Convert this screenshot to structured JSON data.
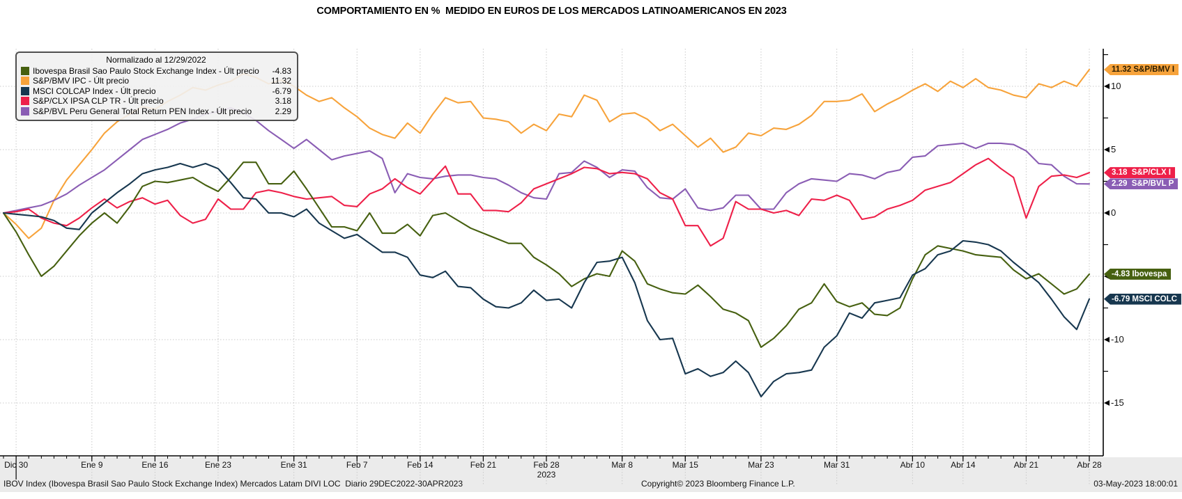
{
  "title": "COMPORTAMIENTO EN %  MEDIDO EN EUROS DE LOS MERCADOS LATINOAMERICANOS EN 2023",
  "legend": {
    "title": "Normalizado al 12/29/2022",
    "rows": [
      {
        "label": "Ibovespa Brasil Sao Paulo Stock Exchange Index - Últ precio",
        "value": "-4.83",
        "color": "#466010"
      },
      {
        "label": "S&P/BMV IPC - Últ precio",
        "value": "11.32",
        "color": "#f7a33b"
      },
      {
        "label": "MSCI COLCAP Index - Últ precio",
        "value": "-6.79",
        "color": "#17374f"
      },
      {
        "label": "S&P/CLX IPSA CLP TR - Últ precio",
        "value": "3.18",
        "color": "#ee2049"
      },
      {
        "label": "S&P/BVL Peru General Total Return PEN Index - Últ precio",
        "value": "2.29",
        "color": "#8a5db4"
      }
    ]
  },
  "axis_tags": [
    {
      "text": "11.32 S&P/BMV I",
      "value": 11.32,
      "bg": "#f7a33b",
      "fg": "#2b1d00",
      "border": "#7a5a10"
    },
    {
      "text": "3.18  S&P/CLX I",
      "value": 3.18,
      "bg": "#ee2049",
      "fg": "#ffffff",
      "border": "#7e0a22"
    },
    {
      "text": "2.29  S&P/BVL P",
      "value": 2.29,
      "bg": "#8a5db4",
      "fg": "#ffffff",
      "border": "#462860"
    },
    {
      "text": "-4.83 Ibovespa",
      "value": -4.83,
      "bg": "#466010",
      "fg": "#ffffff",
      "border": "#1f2e04"
    },
    {
      "text": "-6.79 MSCI COLC",
      "value": -6.79,
      "bg": "#17374f",
      "fg": "#ffffff",
      "border": "#081724"
    }
  ],
  "footer": {
    "left": "IBOV Index (Ibovespa Brasil Sao Paulo Stock Exchange Index) Mercados Latam DIVI LOC  Diario 29DEC2022-30APR2023",
    "center": "Copyright© 2023 Bloomberg Finance L.P.",
    "right": "03-May-2023 18:00:01"
  },
  "chart_data": {
    "type": "line",
    "title": "COMPORTAMIENTO EN %  MEDIDO EN EUROS DE LOS MERCADOS LATINOAMERICANOS EN 2023",
    "normalized_note": "Normalizado al 12/29/2022",
    "x_unit": "business-day index from 29-Dec-2022 (0) to 28-Apr-2023 (86)",
    "ylabel": "% change in EUR",
    "ylim": [
      -16.5,
      13
    ],
    "y_ticks": [
      10,
      5,
      0,
      -5,
      -10,
      -15
    ],
    "y_minor_step": 2.5,
    "grid": "dotted",
    "legend_position": "top-left",
    "year_label": "2023",
    "x_tick_labels": [
      {
        "label": "Dic 30",
        "day": 1,
        "year_start": true
      },
      {
        "label": "Ene 9",
        "day": 7
      },
      {
        "label": "Ene 16",
        "day": 12
      },
      {
        "label": "Ene 23",
        "day": 17
      },
      {
        "label": "Ene 31",
        "day": 23
      },
      {
        "label": "Feb 7",
        "day": 28
      },
      {
        "label": "Feb 14",
        "day": 33
      },
      {
        "label": "Feb 21",
        "day": 38
      },
      {
        "label": "Feb 28",
        "day": 43
      },
      {
        "label": "Mar 8",
        "day": 49
      },
      {
        "label": "Mar 15",
        "day": 54
      },
      {
        "label": "Mar 23",
        "day": 60
      },
      {
        "label": "Mar 31",
        "day": 66
      },
      {
        "label": "Abr 10",
        "day": 72
      },
      {
        "label": "Abr 14",
        "day": 76
      },
      {
        "label": "Abr 21",
        "day": 81
      },
      {
        "label": "Abr 28",
        "day": 86
      }
    ],
    "series": [
      {
        "name": "S&P/BMV IPC",
        "color": "#f7a33b",
        "last_value": 11.32,
        "values": [
          0,
          -0.9,
          -2.0,
          -1.2,
          1.0,
          2.6,
          3.8,
          5.0,
          6.3,
          7.2,
          7.8,
          8.4,
          8.2,
          8.8,
          9.3,
          9.9,
          9.7,
          10.1,
          10.4,
          11.0,
          10.7,
          10.2,
          10.5,
          10.0,
          9.3,
          8.8,
          9.1,
          8.3,
          7.6,
          6.7,
          6.2,
          5.9,
          7.1,
          6.3,
          7.8,
          9.1,
          8.7,
          8.8,
          7.5,
          7.4,
          7.2,
          6.3,
          7.0,
          6.5,
          7.8,
          7.6,
          9.3,
          8.9,
          7.2,
          7.8,
          7.9,
          7.4,
          6.5,
          7.0,
          6.1,
          5.2,
          5.9,
          4.8,
          5.2,
          6.3,
          6.1,
          6.7,
          6.6,
          7.0,
          7.7,
          8.8,
          8.8,
          8.9,
          9.4,
          8.0,
          8.6,
          9.1,
          9.7,
          10.2,
          9.6,
          10.4,
          9.9,
          10.6,
          9.9,
          9.7,
          9.3,
          9.1,
          10.2,
          9.9,
          10.4,
          10.0,
          11.32
        ]
      },
      {
        "name": "S&P/BVL Peru General Total Return PEN Index",
        "color": "#8a5db4",
        "last_value": 2.29,
        "values": [
          0,
          0.2,
          0.4,
          0.6,
          1.0,
          1.5,
          2.2,
          2.8,
          3.4,
          4.2,
          5.0,
          5.8,
          6.2,
          6.6,
          7.1,
          7.4,
          7.8,
          8.0,
          8.3,
          7.9,
          7.3,
          6.5,
          5.8,
          5.1,
          5.8,
          5.0,
          4.2,
          4.5,
          4.7,
          4.9,
          4.3,
          1.6,
          3.1,
          2.8,
          2.7,
          2.9,
          3.0,
          3.0,
          2.8,
          2.7,
          2.2,
          1.6,
          1.2,
          1.1,
          3.1,
          3.2,
          4.1,
          3.6,
          2.8,
          3.4,
          3.3,
          2.0,
          1.2,
          1.1,
          1.9,
          0.4,
          0.2,
          0.4,
          1.4,
          1.4,
          0.3,
          0.3,
          1.6,
          2.3,
          2.7,
          2.6,
          2.5,
          3.1,
          3.0,
          2.7,
          3.2,
          3.4,
          4.4,
          4.5,
          5.3,
          5.4,
          5.5,
          5.1,
          5.5,
          5.5,
          5.4,
          4.9,
          3.9,
          3.8,
          2.9,
          2.3,
          2.29
        ]
      },
      {
        "name": "S&P/CLX IPSA CLP TR",
        "color": "#ee2049",
        "last_value": 3.18,
        "values": [
          0,
          0.1,
          0.3,
          -0.4,
          -0.8,
          -1.0,
          -0.4,
          0.4,
          1.1,
          0.4,
          0.9,
          1.2,
          0.7,
          1.0,
          -0.2,
          -0.8,
          -0.5,
          1.1,
          0.3,
          0.3,
          1.6,
          1.8,
          1.6,
          1.3,
          1.1,
          1.2,
          1.3,
          0.6,
          0.5,
          1.5,
          1.9,
          2.7,
          2.0,
          1.5,
          2.6,
          3.7,
          1.5,
          1.5,
          0.2,
          0.2,
          0.1,
          0.8,
          1.9,
          2.3,
          2.7,
          3.1,
          3.6,
          3.5,
          3.1,
          3.2,
          3.1,
          2.7,
          1.6,
          1.1,
          -1.0,
          -1.0,
          -2.6,
          -2.0,
          0.9,
          0.3,
          0.3,
          0.0,
          0.2,
          -0.2,
          1.1,
          1.0,
          1.4,
          1.0,
          -0.5,
          -0.3,
          0.3,
          0.6,
          1.0,
          1.8,
          2.1,
          2.4,
          3.1,
          3.8,
          4.3,
          3.5,
          2.8,
          -0.4,
          2.1,
          2.9,
          3.0,
          2.8,
          3.18
        ]
      },
      {
        "name": "Ibovespa Brasil Sao Paulo Stock Exchange Index",
        "color": "#466010",
        "last_value": -4.83,
        "values": [
          0,
          -1.5,
          -3.3,
          -5.0,
          -4.2,
          -3.0,
          -1.8,
          -0.8,
          0.0,
          -0.8,
          0.5,
          2.1,
          2.5,
          2.4,
          2.6,
          2.8,
          2.2,
          1.7,
          2.8,
          4.0,
          4.0,
          2.3,
          2.3,
          3.3,
          1.9,
          0.4,
          -1.1,
          -1.1,
          -1.4,
          0.0,
          -1.6,
          -1.6,
          -0.9,
          -1.8,
          -0.2,
          0.0,
          -0.6,
          -1.2,
          -1.6,
          -2.0,
          -2.4,
          -2.4,
          -3.5,
          -4.1,
          -4.8,
          -5.8,
          -5.2,
          -4.8,
          -5.0,
          -3.0,
          -3.8,
          -5.6,
          -6.0,
          -6.3,
          -6.4,
          -5.7,
          -6.6,
          -7.6,
          -7.9,
          -8.5,
          -10.6,
          -9.9,
          -8.9,
          -7.6,
          -7.1,
          -5.6,
          -7.0,
          -7.4,
          -7.1,
          -8.0,
          -8.1,
          -7.5,
          -5.2,
          -3.3,
          -2.6,
          -2.8,
          -3.0,
          -3.3,
          -3.4,
          -3.5,
          -4.5,
          -5.2,
          -4.8,
          -5.6,
          -6.4,
          -6.0,
          -4.83
        ]
      },
      {
        "name": "MSCI COLCAP Index",
        "color": "#17374f",
        "last_value": -6.79,
        "values": [
          0,
          -0.1,
          -0.2,
          -0.3,
          -0.6,
          -1.2,
          -1.3,
          0.0,
          0.8,
          1.6,
          2.3,
          3.1,
          3.4,
          3.6,
          3.9,
          3.6,
          3.9,
          3.5,
          2.4,
          1.2,
          1.1,
          0.0,
          0.0,
          -0.3,
          0.3,
          -0.8,
          -1.4,
          -2.0,
          -1.7,
          -2.4,
          -3.1,
          -3.1,
          -3.5,
          -4.9,
          -5.1,
          -4.6,
          -5.8,
          -5.9,
          -6.8,
          -7.4,
          -7.5,
          -7.1,
          -6.1,
          -6.9,
          -6.8,
          -7.5,
          -5.5,
          -3.9,
          -3.8,
          -3.5,
          -5.5,
          -8.5,
          -10.0,
          -9.9,
          -12.7,
          -12.3,
          -12.9,
          -12.6,
          -11.7,
          -12.6,
          -14.5,
          -13.3,
          -12.7,
          -12.6,
          -12.4,
          -10.6,
          -9.7,
          -7.9,
          -8.3,
          -7.1,
          -6.9,
          -6.7,
          -4.9,
          -4.4,
          -3.3,
          -3.0,
          -2.2,
          -2.3,
          -2.5,
          -3.0,
          -3.9,
          -4.7,
          -5.5,
          -6.8,
          -8.2,
          -9.2,
          -6.79
        ]
      }
    ]
  }
}
